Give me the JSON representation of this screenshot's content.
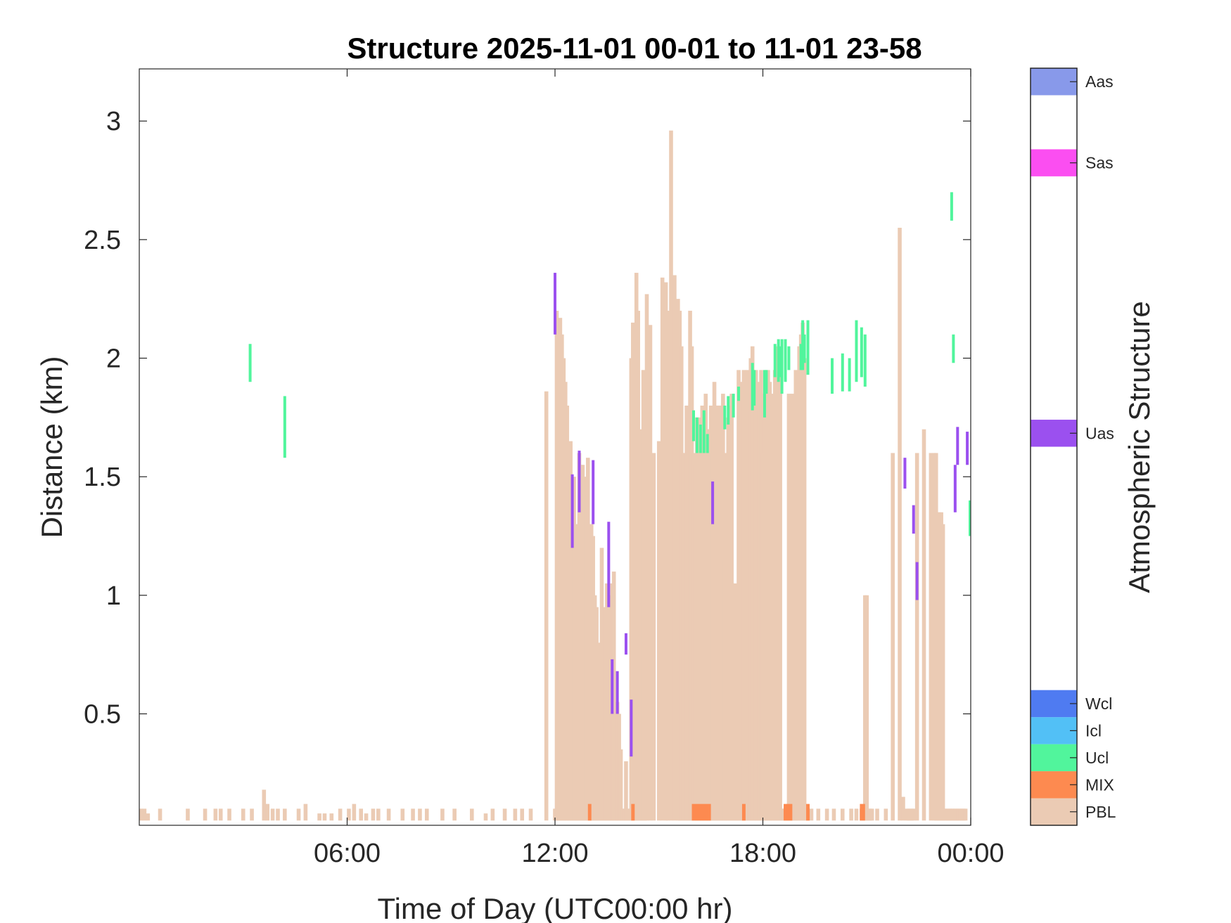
{
  "chart_data": {
    "type": "bar",
    "title": "Structure 2025-11-01 00-01 to 11-01 23-58",
    "xlabel": "Time of Day (UTC00:00 hr)",
    "ylabel": "Distance (km)",
    "x_unit": "hours",
    "xlim": [
      0,
      24
    ],
    "ylim": [
      0.03,
      3.22
    ],
    "x_ticks": [
      6,
      12,
      18,
      24
    ],
    "x_tick_labels": [
      "06:00",
      "12:00",
      "18:00",
      "00:00"
    ],
    "y_ticks": [
      0.5,
      1,
      1.5,
      2,
      2.5,
      3
    ],
    "y_tick_labels": [
      "0.5",
      "1",
      "1.5",
      "2",
      "2.5",
      "3"
    ],
    "colorbar": {
      "label": "Atmospheric Structure",
      "categories": [
        {
          "name": "PBL",
          "color": "#ebcbb4"
        },
        {
          "name": "MIX",
          "color": "#fd8a50"
        },
        {
          "name": "Ucl",
          "color": "#51f59c"
        },
        {
          "name": "Icl",
          "color": "#52c0f6"
        },
        {
          "name": "Wcl",
          "color": "#4f7bf1"
        },
        {
          "name": "Uas",
          "color": "#9b50ef"
        },
        {
          "name": "Sas",
          "color": "#fb4ef1"
        },
        {
          "name": "Aas",
          "color": "#8899ea"
        }
      ]
    },
    "pbl": {
      "name": "PBL",
      "color": "#ebcbb4",
      "baseline": 0.05,
      "x": [
        0.05,
        0.15,
        0.25,
        0.6,
        1.4,
        1.9,
        2.2,
        2.35,
        2.6,
        3.0,
        3.25,
        3.6,
        3.7,
        3.85,
        4.0,
        4.2,
        4.6,
        4.8,
        5.2,
        5.35,
        5.55,
        5.8,
        6.05,
        6.2,
        6.4,
        6.55,
        6.75,
        6.9,
        7.2,
        7.6,
        7.9,
        8.1,
        8.3,
        8.75,
        9.1,
        9.6,
        10.0,
        10.2,
        10.55,
        10.85,
        11.05,
        11.3,
        11.75,
        12.0,
        12.05,
        12.1,
        12.15,
        12.2,
        12.25,
        12.3,
        12.35,
        12.4,
        12.45,
        12.5,
        12.55,
        12.6,
        12.65,
        12.7,
        12.75,
        12.8,
        12.85,
        12.9,
        12.95,
        13.0,
        13.05,
        13.1,
        13.15,
        13.2,
        13.25,
        13.3,
        13.35,
        13.4,
        13.45,
        13.5,
        13.55,
        13.6,
        13.65,
        13.7,
        13.75,
        13.8,
        13.85,
        13.9,
        13.95,
        14.0,
        14.05,
        14.1,
        14.15,
        14.2,
        14.25,
        14.3,
        14.35,
        14.4,
        14.45,
        14.5,
        14.55,
        14.6,
        14.65,
        14.75,
        14.85,
        15.0,
        15.1,
        15.2,
        15.25,
        15.35,
        15.45,
        15.55,
        15.6,
        15.65,
        15.7,
        15.75,
        15.8,
        15.85,
        15.9,
        15.95,
        16.0,
        16.05,
        16.1,
        16.15,
        16.2,
        16.25,
        16.3,
        16.35,
        16.4,
        16.45,
        16.5,
        16.55,
        16.6,
        16.65,
        16.7,
        16.75,
        16.8,
        16.85,
        16.9,
        16.95,
        17.0,
        17.05,
        17.1,
        17.15,
        17.2,
        17.25,
        17.3,
        17.35,
        17.4,
        17.45,
        17.5,
        17.55,
        17.6,
        17.65,
        17.7,
        17.75,
        17.8,
        17.85,
        17.9,
        17.95,
        18.0,
        18.05,
        18.1,
        18.15,
        18.2,
        18.25,
        18.3,
        18.35,
        18.4,
        18.45,
        18.5,
        18.55,
        18.6,
        18.65,
        18.7,
        18.75,
        18.8,
        18.85,
        18.9,
        18.95,
        19.0,
        19.05,
        19.1,
        19.15,
        19.2,
        19.25,
        19.3,
        19.4,
        19.6,
        19.85,
        20.05,
        20.3,
        20.55,
        20.7,
        20.85,
        20.95,
        21.0,
        21.05,
        21.1,
        21.15,
        21.3,
        21.55,
        21.75,
        21.95,
        22.05,
        22.15,
        22.2,
        22.25,
        22.3,
        22.35,
        22.45,
        22.65,
        22.85,
        22.95,
        23.0,
        23.05,
        23.1,
        23.15,
        23.2,
        23.25,
        23.3,
        23.35,
        23.4,
        23.45,
        23.5,
        23.55,
        23.6,
        23.65,
        23.7,
        23.75,
        23.8,
        23.85,
        23.9,
        23.95,
        24.0
      ],
      "top": [
        0.1,
        0.1,
        0.08,
        0.1,
        0.1,
        0.1,
        0.1,
        0.1,
        0.1,
        0.1,
        0.1,
        0.18,
        0.12,
        0.1,
        0.1,
        0.1,
        0.1,
        0.12,
        0.08,
        0.08,
        0.08,
        0.1,
        0.1,
        0.12,
        0.1,
        0.08,
        0.1,
        0.1,
        0.1,
        0.1,
        0.1,
        0.1,
        0.1,
        0.1,
        0.1,
        0.1,
        0.08,
        0.1,
        0.1,
        0.1,
        0.1,
        0.1,
        1.86,
        0.1,
        2.2,
        2.15,
        2.17,
        2.1,
        2.0,
        1.9,
        1.8,
        1.6,
        1.65,
        1.45,
        1.5,
        1.3,
        1.15,
        1.6,
        1.55,
        1.55,
        1.4,
        1.5,
        1.58,
        1.3,
        1.3,
        1.25,
        1.0,
        0.95,
        0.8,
        0.6,
        1.2,
        0.65,
        0.95,
        1.05,
        0.75,
        1.0,
        1.05,
        1.1,
        0.1,
        0.55,
        0.5,
        0.35,
        0.1,
        0.1,
        0.3,
        0.1,
        0.1,
        2.0,
        2.15,
        0.1,
        2.36,
        2.2,
        1.7,
        1.65,
        1.95,
        1.65,
        2.27,
        2.14,
        1.6,
        1.65,
        2.34,
        2.32,
        2.2,
        2.96,
        2.35,
        2.25,
        2.2,
        2.05,
        1.6,
        1.6,
        1.8,
        1.75,
        2.2,
        2.05,
        1.6,
        1.55,
        1.75,
        1.7,
        1.75,
        1.8,
        1.68,
        1.85,
        1.7,
        1.7,
        1.8,
        1.75,
        1.9,
        1.8,
        1.8,
        1.8,
        1.8,
        1.85,
        1.15,
        1.6,
        1.75,
        1.8,
        1.85,
        1.05,
        1.05,
        0.15,
        1.95,
        1.9,
        1.75,
        1.95,
        1.9,
        1.95,
        1.9,
        2.0,
        2.05,
        1.9,
        1.95,
        1.85,
        1.9,
        1.95,
        1.6,
        1.85,
        1.9,
        1.95,
        1.9,
        1.8,
        1.85,
        1.95,
        2.05,
        1.95,
        1.95,
        0.1,
        0.1,
        0.1,
        0.1,
        1.85,
        0.1,
        1.85,
        0.1,
        1.95,
        0.1,
        2.05,
        2.1,
        2.15,
        2.0,
        0.1,
        0.1,
        0.1,
        0.1,
        0.1,
        0.1,
        0.1,
        0.1,
        0.1,
        0.1,
        1.0,
        1.0,
        0.1,
        0.1,
        0.1,
        0.1,
        0.1,
        1.6,
        2.55,
        0.15,
        0.1,
        0.1,
        0.1,
        0.1,
        0.1,
        1.6,
        1.7,
        1.6,
        1.6,
        1.6,
        1.35,
        1.35,
        1.35,
        1.3,
        0.1,
        0.1,
        0.1,
        0.1,
        0.1,
        0.1,
        0.1,
        0.1,
        0.1,
        0.1,
        0.1,
        0.1,
        0.1
      ]
    },
    "mix": {
      "name": "MIX",
      "color": "#fd8a50",
      "segments": [
        {
          "x0": 12.95,
          "x1": 13.05,
          "y0": 0.05,
          "y1": 0.12
        },
        {
          "x0": 14.2,
          "x1": 14.3,
          "y0": 0.05,
          "y1": 0.12
        },
        {
          "x0": 15.95,
          "x1": 16.5,
          "y0": 0.05,
          "y1": 0.12
        },
        {
          "x0": 17.4,
          "x1": 17.5,
          "y0": 0.05,
          "y1": 0.12
        },
        {
          "x0": 18.6,
          "x1": 18.85,
          "y0": 0.05,
          "y1": 0.12
        },
        {
          "x0": 19.25,
          "x1": 19.35,
          "y0": 0.05,
          "y1": 0.12
        },
        {
          "x0": 20.8,
          "x1": 20.95,
          "y0": 0.05,
          "y1": 0.12
        }
      ]
    },
    "ucl": {
      "name": "Ucl",
      "color": "#51f59c",
      "segments": [
        {
          "x": 3.2,
          "y0": 1.9,
          "y1": 2.06
        },
        {
          "x": 4.2,
          "y0": 1.58,
          "y1": 1.84
        },
        {
          "x": 16.0,
          "y0": 1.65,
          "y1": 1.78
        },
        {
          "x": 16.1,
          "y0": 1.6,
          "y1": 1.75
        },
        {
          "x": 16.2,
          "y0": 1.6,
          "y1": 1.72
        },
        {
          "x": 16.3,
          "y0": 1.6,
          "y1": 1.78
        },
        {
          "x": 16.4,
          "y0": 1.6,
          "y1": 1.68
        },
        {
          "x": 16.9,
          "y0": 1.7,
          "y1": 1.8
        },
        {
          "x": 17.0,
          "y0": 1.72,
          "y1": 1.84
        },
        {
          "x": 17.15,
          "y0": 1.75,
          "y1": 1.85
        },
        {
          "x": 17.3,
          "y0": 1.82,
          "y1": 1.88
        },
        {
          "x": 17.7,
          "y0": 1.78,
          "y1": 1.98
        },
        {
          "x": 17.75,
          "y0": 1.8,
          "y1": 1.95
        },
        {
          "x": 18.05,
          "y0": 1.75,
          "y1": 1.95
        },
        {
          "x": 18.1,
          "y0": 1.85,
          "y1": 1.95
        },
        {
          "x": 18.35,
          "y0": 1.92,
          "y1": 2.06
        },
        {
          "x": 18.45,
          "y0": 1.9,
          "y1": 2.08
        },
        {
          "x": 18.5,
          "y0": 1.92,
          "y1": 2.05
        },
        {
          "x": 18.55,
          "y0": 1.85,
          "y1": 2.08
        },
        {
          "x": 18.65,
          "y0": 1.9,
          "y1": 2.08
        },
        {
          "x": 18.75,
          "y0": 1.95,
          "y1": 2.05
        },
        {
          "x": 19.1,
          "y0": 1.95,
          "y1": 2.06
        },
        {
          "x": 19.15,
          "y0": 1.95,
          "y1": 2.16
        },
        {
          "x": 19.2,
          "y0": 1.98,
          "y1": 2.1
        },
        {
          "x": 19.3,
          "y0": 1.93,
          "y1": 2.16
        },
        {
          "x": 20.0,
          "y0": 1.85,
          "y1": 2.0
        },
        {
          "x": 20.3,
          "y0": 1.86,
          "y1": 2.02
        },
        {
          "x": 20.5,
          "y0": 1.86,
          "y1": 2.0
        },
        {
          "x": 20.7,
          "y0": 1.9,
          "y1": 2.16
        },
        {
          "x": 20.85,
          "y0": 1.92,
          "y1": 2.13
        },
        {
          "x": 20.95,
          "y0": 1.88,
          "y1": 2.1
        },
        {
          "x": 23.45,
          "y0": 2.58,
          "y1": 2.7
        },
        {
          "x": 23.5,
          "y0": 1.98,
          "y1": 2.1
        },
        {
          "x": 23.98,
          "y0": 1.25,
          "y1": 1.4
        }
      ]
    },
    "uas": {
      "name": "Uas",
      "color": "#9b50ef",
      "segments": [
        {
          "x": 12.0,
          "y0": 2.1,
          "y1": 2.36
        },
        {
          "x": 12.5,
          "y0": 1.2,
          "y1": 1.51
        },
        {
          "x": 12.7,
          "y0": 1.35,
          "y1": 1.61
        },
        {
          "x": 13.1,
          "y0": 1.3,
          "y1": 1.57
        },
        {
          "x": 13.55,
          "y0": 0.95,
          "y1": 1.31
        },
        {
          "x": 13.65,
          "y0": 0.5,
          "y1": 0.73
        },
        {
          "x": 13.8,
          "y0": 0.5,
          "y1": 0.68
        },
        {
          "x": 14.05,
          "y0": 0.75,
          "y1": 0.84
        },
        {
          "x": 14.2,
          "y0": 0.32,
          "y1": 0.56
        },
        {
          "x": 16.55,
          "y0": 1.3,
          "y1": 1.48
        },
        {
          "x": 22.1,
          "y0": 1.45,
          "y1": 1.58
        },
        {
          "x": 22.35,
          "y0": 1.26,
          "y1": 1.38
        },
        {
          "x": 22.45,
          "y0": 0.98,
          "y1": 1.14
        },
        {
          "x": 23.55,
          "y0": 1.35,
          "y1": 1.55
        },
        {
          "x": 23.62,
          "y0": 1.55,
          "y1": 1.71
        },
        {
          "x": 23.9,
          "y0": 1.55,
          "y1": 1.69
        }
      ]
    }
  }
}
